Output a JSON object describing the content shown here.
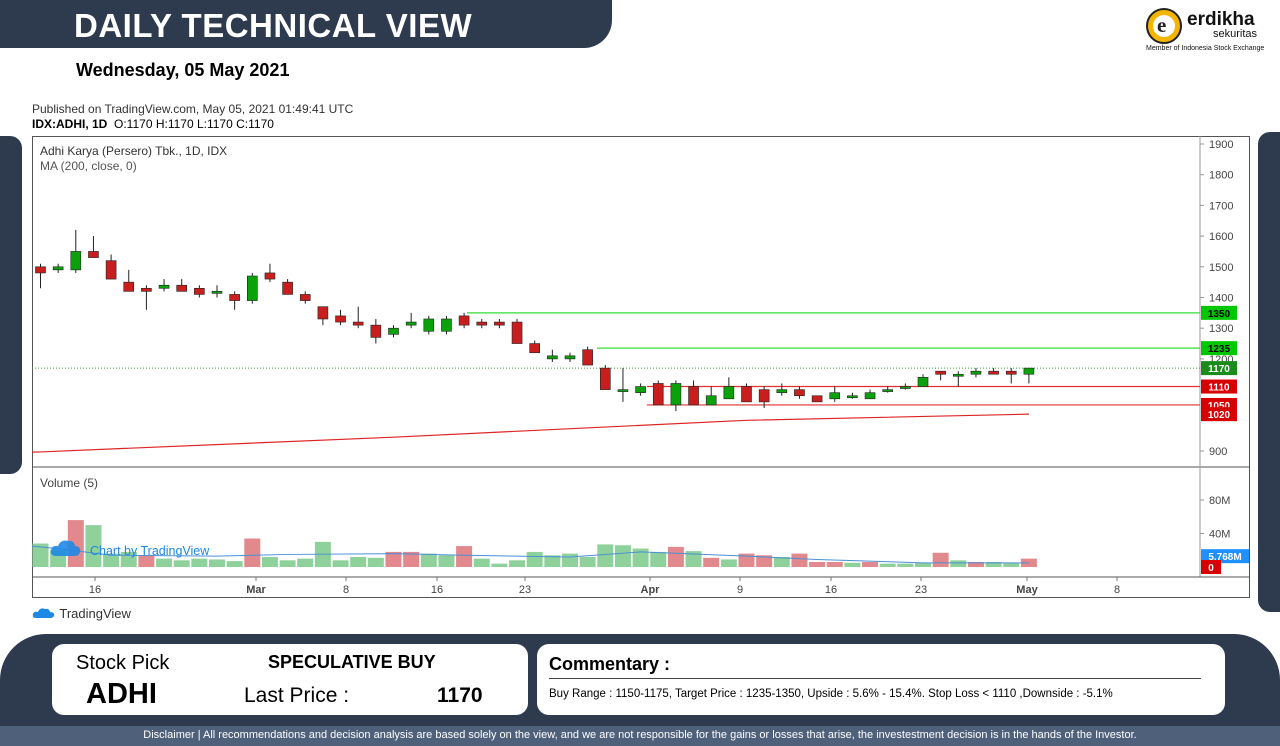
{
  "header": {
    "title": "DAILY TECHNICAL VIEW",
    "date": "Wednesday, 05 May 2021"
  },
  "logo": {
    "letter": "e",
    "name": "erdikha",
    "sub": "sekuritas",
    "member": "Member of Indonesia Stock Exchange"
  },
  "published": {
    "line1": "Published on TradingView.com, May 05, 2021 01:49:41 UTC",
    "symbol": "IDX:ADHI, 1D",
    "ohlc": "O:1170 H:1170 L:1170 C:1170"
  },
  "branding": {
    "watermark": "Chart by TradingView",
    "footer": "TradingView"
  },
  "chart_data": [
    {
      "type": "candlestick",
      "title": "Adhi Karya (Persero) Tbk., 1D, IDX",
      "indicator": "MA (200, close, 0)",
      "yticks": [
        900,
        1200,
        1300,
        1400,
        1500,
        1600,
        1700,
        1800,
        1900
      ],
      "ylim": [
        860,
        1930
      ],
      "xtick_labels": [
        "16",
        "Mar",
        "8",
        "16",
        "23",
        "Apr",
        "9",
        "16",
        "23",
        "May",
        "8"
      ],
      "candles": [
        [
          1500,
          1480,
          1510,
          1430
        ],
        [
          1490,
          1500,
          1510,
          1480
        ],
        [
          1490,
          1550,
          1620,
          1480
        ],
        [
          1550,
          1530,
          1600,
          1530
        ],
        [
          1520,
          1460,
          1540,
          1460
        ],
        [
          1450,
          1420,
          1490,
          1420
        ],
        [
          1430,
          1420,
          1440,
          1360
        ],
        [
          1430,
          1440,
          1460,
          1420
        ],
        [
          1440,
          1420,
          1460,
          1420
        ],
        [
          1430,
          1410,
          1440,
          1400
        ],
        [
          1420,
          1420,
          1440,
          1400
        ],
        [
          1410,
          1390,
          1420,
          1360
        ],
        [
          1390,
          1470,
          1480,
          1380
        ],
        [
          1480,
          1460,
          1510,
          1450
        ],
        [
          1450,
          1410,
          1460,
          1410
        ],
        [
          1410,
          1390,
          1420,
          1380
        ],
        [
          1370,
          1330,
          1370,
          1310
        ],
        [
          1340,
          1320,
          1360,
          1310
        ],
        [
          1320,
          1310,
          1370,
          1300
        ],
        [
          1310,
          1270,
          1330,
          1250
        ],
        [
          1280,
          1300,
          1310,
          1270
        ],
        [
          1310,
          1320,
          1350,
          1300
        ],
        [
          1290,
          1330,
          1340,
          1280
        ],
        [
          1290,
          1330,
          1340,
          1280
        ],
        [
          1340,
          1310,
          1350,
          1300
        ],
        [
          1320,
          1310,
          1330,
          1300
        ],
        [
          1320,
          1310,
          1330,
          1300
        ],
        [
          1320,
          1250,
          1330,
          1250
        ],
        [
          1250,
          1220,
          1260,
          1220
        ],
        [
          1200,
          1210,
          1230,
          1190
        ],
        [
          1200,
          1210,
          1220,
          1190
        ],
        [
          1230,
          1180,
          1240,
          1180
        ],
        [
          1170,
          1100,
          1180,
          1100
        ],
        [
          1100,
          1100,
          1170,
          1060
        ],
        [
          1090,
          1110,
          1120,
          1080
        ],
        [
          1120,
          1050,
          1130,
          1050
        ],
        [
          1050,
          1120,
          1130,
          1030
        ],
        [
          1110,
          1050,
          1130,
          1050
        ],
        [
          1050,
          1080,
          1110,
          1050
        ],
        [
          1070,
          1110,
          1140,
          1070
        ],
        [
          1110,
          1060,
          1120,
          1060
        ],
        [
          1100,
          1060,
          1110,
          1040
        ],
        [
          1090,
          1100,
          1120,
          1080
        ],
        [
          1100,
          1080,
          1110,
          1070
        ],
        [
          1080,
          1060,
          1080,
          1060
        ],
        [
          1070,
          1090,
          1110,
          1060
        ],
        [
          1080,
          1080,
          1090,
          1070
        ],
        [
          1070,
          1090,
          1100,
          1070
        ],
        [
          1100,
          1100,
          1110,
          1090
        ],
        [
          1110,
          1110,
          1120,
          1100
        ],
        [
          1110,
          1140,
          1150,
          1110
        ],
        [
          1160,
          1150,
          1160,
          1130
        ],
        [
          1150,
          1150,
          1160,
          1110
        ],
        [
          1150,
          1160,
          1170,
          1140
        ],
        [
          1160,
          1150,
          1170,
          1150
        ],
        [
          1160,
          1150,
          1170,
          1120
        ],
        [
          1150,
          1170,
          1170,
          1120
        ]
      ],
      "ma200": [
        [
          -5,
          890
        ],
        [
          0,
          897
        ],
        [
          20,
          945
        ],
        [
          40,
          1000
        ],
        [
          56,
          1020
        ]
      ],
      "levels": [
        {
          "value": 1350,
          "label": "1350",
          "color": "#00c800"
        },
        {
          "value": 1235,
          "label": "1235",
          "color": "#00c800"
        },
        {
          "value": 1170,
          "label": "1170",
          "color": "#1a8c1a"
        },
        {
          "value": 1110,
          "label": "1110",
          "color": "#d60000"
        },
        {
          "value": 1050,
          "label": "1050",
          "color": "#d60000"
        },
        {
          "value": 1020,
          "label": "1020",
          "color": "#d60000"
        }
      ]
    },
    {
      "type": "bar",
      "title": "Volume (5)",
      "yticks_labels": [
        "40M",
        "80M"
      ],
      "yticks": [
        40,
        80
      ],
      "ylim": [
        0,
        100
      ],
      "current_labels": [
        {
          "value": 5.768,
          "label": "5.768M",
          "color": "#1e90ff"
        },
        {
          "value": 0,
          "label": "0",
          "color": "#d60000"
        }
      ],
      "volume": [
        [
          28,
          1
        ],
        [
          20,
          1
        ],
        [
          56,
          0
        ],
        [
          50,
          1
        ],
        [
          16,
          1
        ],
        [
          18,
          1
        ],
        [
          14,
          0
        ],
        [
          10,
          1
        ],
        [
          8,
          1
        ],
        [
          10,
          1
        ],
        [
          9,
          1
        ],
        [
          7,
          1
        ],
        [
          34,
          0
        ],
        [
          12,
          1
        ],
        [
          8,
          1
        ],
        [
          10,
          1
        ],
        [
          30,
          1
        ],
        [
          8,
          1
        ],
        [
          12,
          1
        ],
        [
          11,
          1
        ],
        [
          18,
          0
        ],
        [
          18,
          0
        ],
        [
          16,
          1
        ],
        [
          14,
          1
        ],
        [
          25,
          0
        ],
        [
          10,
          1
        ],
        [
          4,
          1
        ],
        [
          8,
          1
        ],
        [
          18,
          1
        ],
        [
          14,
          1
        ],
        [
          16,
          1
        ],
        [
          12,
          1
        ],
        [
          27,
          1
        ],
        [
          26,
          1
        ],
        [
          22,
          1
        ],
        [
          18,
          1
        ],
        [
          24,
          0
        ],
        [
          19,
          1
        ],
        [
          11,
          0
        ],
        [
          9,
          1
        ],
        [
          16,
          0
        ],
        [
          14,
          0
        ],
        [
          12,
          1
        ],
        [
          16,
          0
        ],
        [
          6,
          0
        ],
        [
          6,
          0
        ],
        [
          5,
          1
        ],
        [
          6,
          0
        ],
        [
          4,
          1
        ],
        [
          4,
          1
        ],
        [
          5,
          1
        ],
        [
          17,
          0
        ],
        [
          8,
          1
        ],
        [
          6,
          0
        ],
        [
          6,
          1
        ],
        [
          5,
          1
        ],
        [
          10,
          0
        ]
      ],
      "vol_ma": [
        [
          -2,
          28
        ],
        [
          1,
          22
        ],
        [
          4,
          14
        ],
        [
          10,
          13
        ],
        [
          14,
          15
        ],
        [
          20,
          16
        ],
        [
          24,
          14
        ],
        [
          30,
          12
        ],
        [
          34,
          18
        ],
        [
          40,
          13
        ],
        [
          44,
          9
        ],
        [
          50,
          5
        ],
        [
          56,
          5
        ]
      ]
    }
  ],
  "summary": {
    "stock_pick_label": "Stock Pick",
    "stock_code": "ADHI",
    "recommendation": "SPECULATIVE BUY",
    "last_price_label": "Last Price :",
    "last_price": "1170",
    "commentary_title": "Commentary :",
    "commentary": "Buy Range : 1150-1175, Target Price : 1235-1350, Upside : 5.6% - 15.4%. Stop Loss < 1110 ,Downside : -5.1%"
  },
  "disclaimer": "Disclaimer | All recommendations and decision analysis are based solely on the view, and we are not responsible for the gains or losses that arise, the investestment decision is in the hands of the Investor."
}
